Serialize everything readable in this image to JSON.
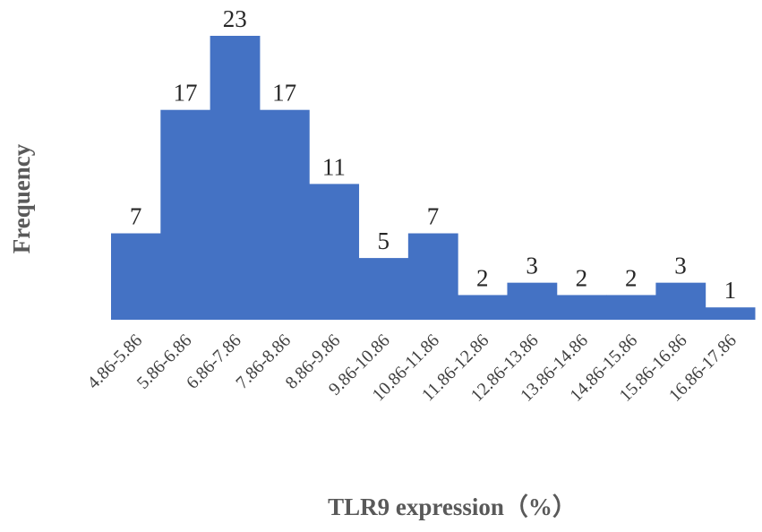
{
  "chart_data": {
    "type": "bar",
    "x_label": "TLR9 expression（%）",
    "y_label": "Frequency",
    "categories": [
      "4.86-5.86",
      "5.86-6.86",
      "6.86-7.86",
      "7.86-8.86",
      "8.86-9.86",
      "9.86-10.86",
      "10.86-11.86",
      "11.86-12.86",
      "12.86-13.86",
      "13.86-14.86",
      "14.86-15.86",
      "15.86-16.86",
      "16.86-17.86"
    ],
    "values": [
      7,
      17,
      23,
      17,
      11,
      5,
      7,
      2,
      3,
      2,
      2,
      3,
      1
    ],
    "color": "#4472c4"
  }
}
